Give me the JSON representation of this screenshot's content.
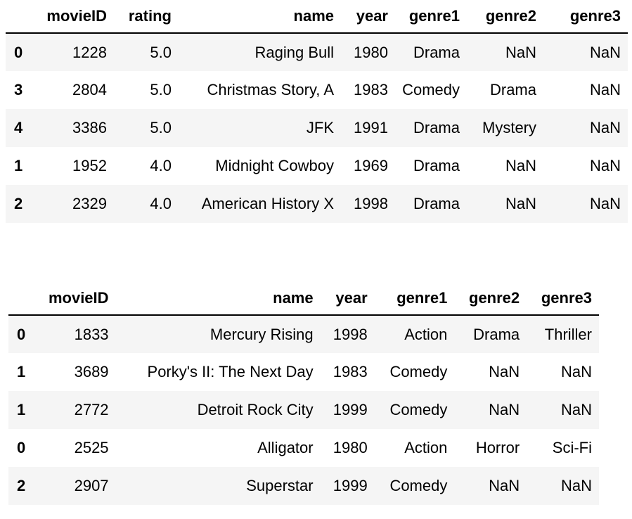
{
  "table1": {
    "columns": [
      "",
      "movieID",
      "rating",
      "name",
      "year",
      "genre1",
      "genre2",
      "genre3"
    ],
    "rows": [
      [
        "0",
        "1228",
        "5.0",
        "Raging Bull",
        "1980",
        "Drama",
        "NaN",
        "NaN"
      ],
      [
        "3",
        "2804",
        "5.0",
        "Christmas Story, A",
        "1983",
        "Comedy",
        "Drama",
        "NaN"
      ],
      [
        "4",
        "3386",
        "5.0",
        "JFK",
        "1991",
        "Drama",
        "Mystery",
        "NaN"
      ],
      [
        "1",
        "1952",
        "4.0",
        "Midnight Cowboy",
        "1969",
        "Drama",
        "NaN",
        "NaN"
      ],
      [
        "2",
        "2329",
        "4.0",
        "American History X",
        "1998",
        "Drama",
        "NaN",
        "NaN"
      ]
    ]
  },
  "table2": {
    "columns": [
      "",
      "movieID",
      "name",
      "year",
      "genre1",
      "genre2",
      "genre3"
    ],
    "rows": [
      [
        "0",
        "1833",
        "Mercury Rising",
        "1998",
        "Action",
        "Drama",
        "Thriller"
      ],
      [
        "1",
        "3689",
        "Porky's II: The Next Day",
        "1983",
        "Comedy",
        "NaN",
        "NaN"
      ],
      [
        "1",
        "2772",
        "Detroit Rock City",
        "1999",
        "Comedy",
        "NaN",
        "NaN"
      ],
      [
        "0",
        "2525",
        "Alligator",
        "1980",
        "Action",
        "Horror",
        "Sci-Fi"
      ],
      [
        "2",
        "2907",
        "Superstar",
        "1999",
        "Comedy",
        "NaN",
        "NaN"
      ]
    ]
  }
}
